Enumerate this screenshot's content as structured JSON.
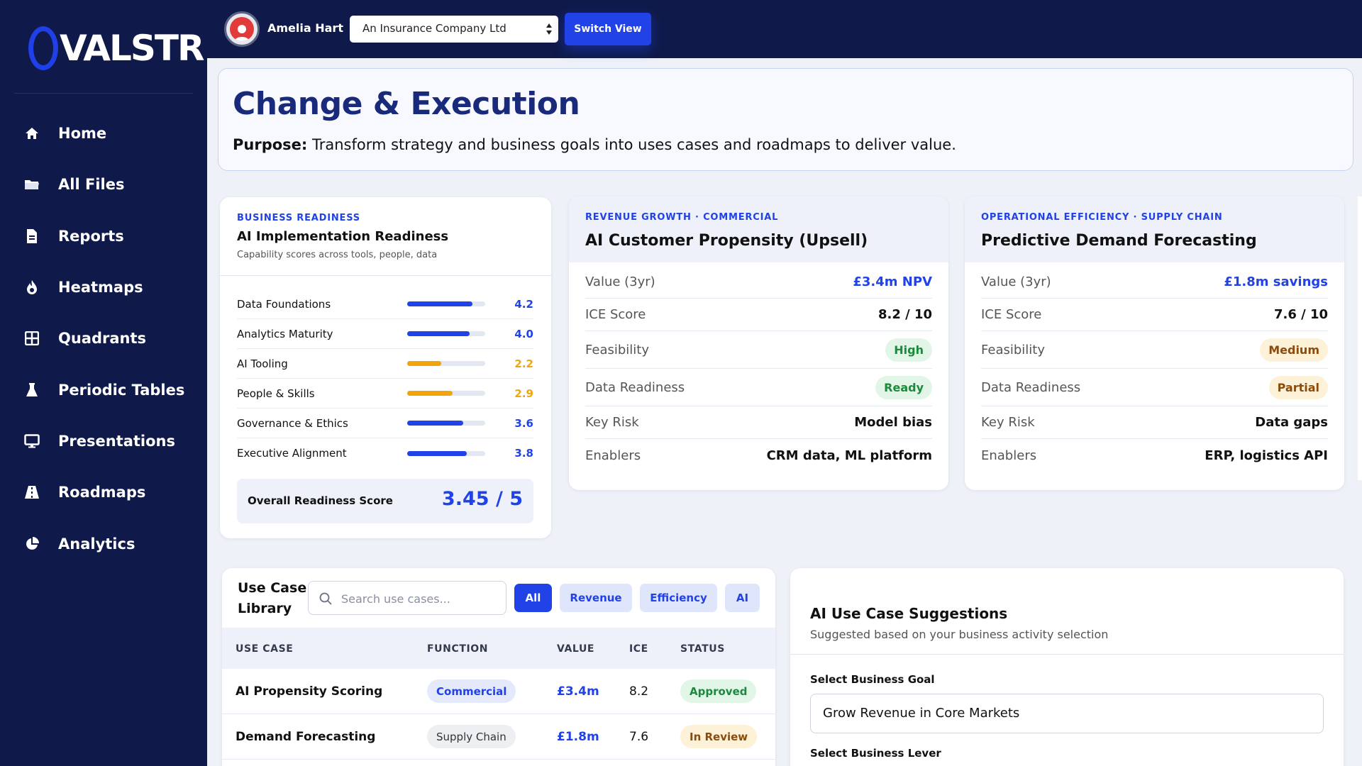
{
  "brand": {
    "logo_text": "VALSTR",
    "accent": "#2042e6",
    "sidebar_bg": "#0f1a4a"
  },
  "sidebar": {
    "items": [
      {
        "label": "Home",
        "icon": "home-icon"
      },
      {
        "label": "All Files",
        "icon": "folder-icon"
      },
      {
        "label": "Reports",
        "icon": "document-icon"
      },
      {
        "label": "Heatmaps",
        "icon": "flame-icon"
      },
      {
        "label": "Quadrants",
        "icon": "grid-icon"
      },
      {
        "label": "Periodic Tables",
        "icon": "flask-icon"
      },
      {
        "label": "Presentations",
        "icon": "monitor-icon"
      },
      {
        "label": "Roadmaps",
        "icon": "road-icon"
      },
      {
        "label": "Analytics",
        "icon": "pie-chart-icon"
      }
    ]
  },
  "topbar": {
    "user_name": "Amelia Hart",
    "company_selected": "An Insurance Company Ltd",
    "switch_label": "Switch View"
  },
  "header": {
    "title": "Change & Execution",
    "purpose_label": "Purpose:",
    "purpose_text": " Transform strategy and business goals into uses cases and roadmaps to deliver value."
  },
  "readiness": {
    "eyebrow": "BUSINESS READINESS",
    "title": "AI Implementation Readiness",
    "subtitle": "Capability scores across tools, people, data",
    "max_score": 5,
    "rows": [
      {
        "label": "Data Foundations",
        "value": "4.2",
        "score": 4.2,
        "level": "good"
      },
      {
        "label": "Analytics Maturity",
        "value": "4.0",
        "score": 4.0,
        "level": "good"
      },
      {
        "label": "AI Tooling",
        "value": "2.2",
        "score": 2.2,
        "level": "warn"
      },
      {
        "label": "People & Skills",
        "value": "2.9",
        "score": 2.9,
        "level": "warn"
      },
      {
        "label": "Governance & Ethics",
        "value": "3.6",
        "score": 3.6,
        "level": "good"
      },
      {
        "label": "Executive Alignment",
        "value": "3.8",
        "score": 3.8,
        "level": "good"
      }
    ],
    "colors": {
      "good": "#2042e6",
      "warn": "#f0a50c"
    },
    "overall_label": "Overall Readiness Score",
    "overall_value": "3.45 / 5"
  },
  "use_cases": [
    {
      "eyebrow": "REVENUE GROWTH · COMMERCIAL",
      "title": "AI Customer Propensity (Upsell)",
      "value_label": "Value (3yr)",
      "value": "£3.4m NPV",
      "ice_label": "ICE Score",
      "ice": "8.2 / 10",
      "feasibility_label": "Feasibility",
      "feasibility": "High",
      "readiness_label": "Data Readiness",
      "readiness": "Ready",
      "risk_label": "Key Risk",
      "risk": "Model bias",
      "enablers_label": "Enablers",
      "enablers": "CRM data, ML platform"
    },
    {
      "eyebrow": "OPERATIONAL EFFICIENCY · SUPPLY CHAIN",
      "title": "Predictive Demand Forecasting",
      "value_label": "Value (3yr)",
      "value": "£1.8m savings",
      "ice_label": "ICE Score",
      "ice": "7.6 / 10",
      "feasibility_label": "Feasibility",
      "feasibility": "Medium",
      "readiness_label": "Data Readiness",
      "readiness": "Partial",
      "risk_label": "Key Risk",
      "risk": "Data gaps",
      "enablers_label": "Enablers",
      "enablers": "ERP, logistics API"
    }
  ],
  "library": {
    "title_line1": "Use Case",
    "title_line2": "Library",
    "search_placeholder": "Search use cases...",
    "filters": [
      "All",
      "Revenue",
      "Efficiency",
      "AI"
    ],
    "columns": [
      "USE CASE",
      "FUNCTION",
      "VALUE",
      "ICE",
      "STATUS"
    ],
    "rows": [
      {
        "use_case": "AI Propensity Scoring",
        "function": "Commercial",
        "value": "£3.4m",
        "ice": "8.2",
        "status": "Approved"
      },
      {
        "use_case": "Demand Forecasting",
        "function": "Supply Chain",
        "value": "£1.8m",
        "ice": "7.6",
        "status": "In Review"
      }
    ]
  },
  "suggestions": {
    "title": "AI Use Case Suggestions",
    "subtitle": "Suggested based on your business activity selection",
    "goal_label": "Select Business Goal",
    "goal_value": "Grow Revenue in Core Markets",
    "lever_label": "Select Business Lever"
  }
}
